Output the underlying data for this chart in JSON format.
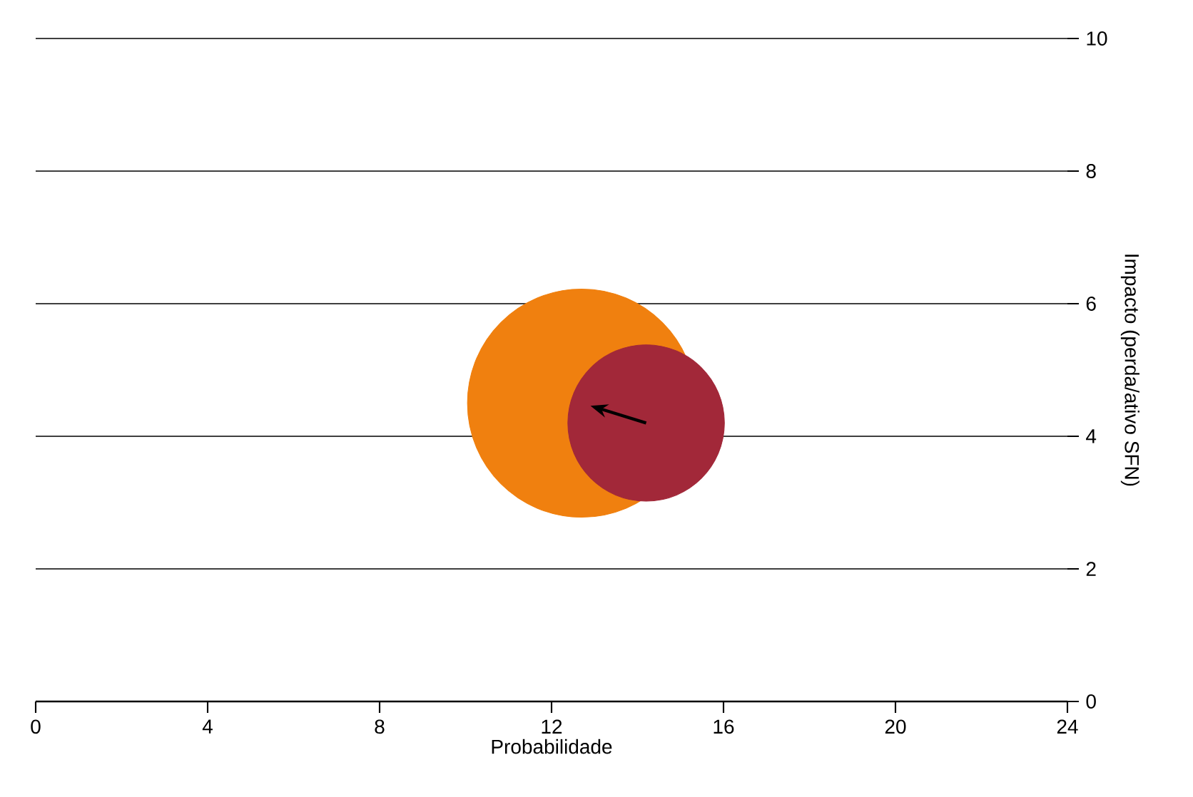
{
  "chart_data": {
    "type": "bubble",
    "xlabel": "Probabilidade",
    "ylabel": "Impacto (perda/ativo SFN)",
    "series": [
      {
        "color": "#f0800f",
        "x": [
          12.7
        ],
        "values": [
          4.5
        ],
        "sizes": [
          1
        ]
      },
      {
        "color": "#a22839",
        "x": [
          14.2
        ],
        "values": [
          4.2
        ],
        "sizes": [
          0.47
        ]
      }
    ],
    "xlim": [
      0,
      24
    ],
    "xticks": [
      0,
      4,
      8,
      12,
      16,
      20,
      24
    ],
    "ylim": [
      0,
      10
    ],
    "yticks": [
      0,
      2,
      4,
      6,
      8,
      10
    ],
    "grid": "y"
  }
}
